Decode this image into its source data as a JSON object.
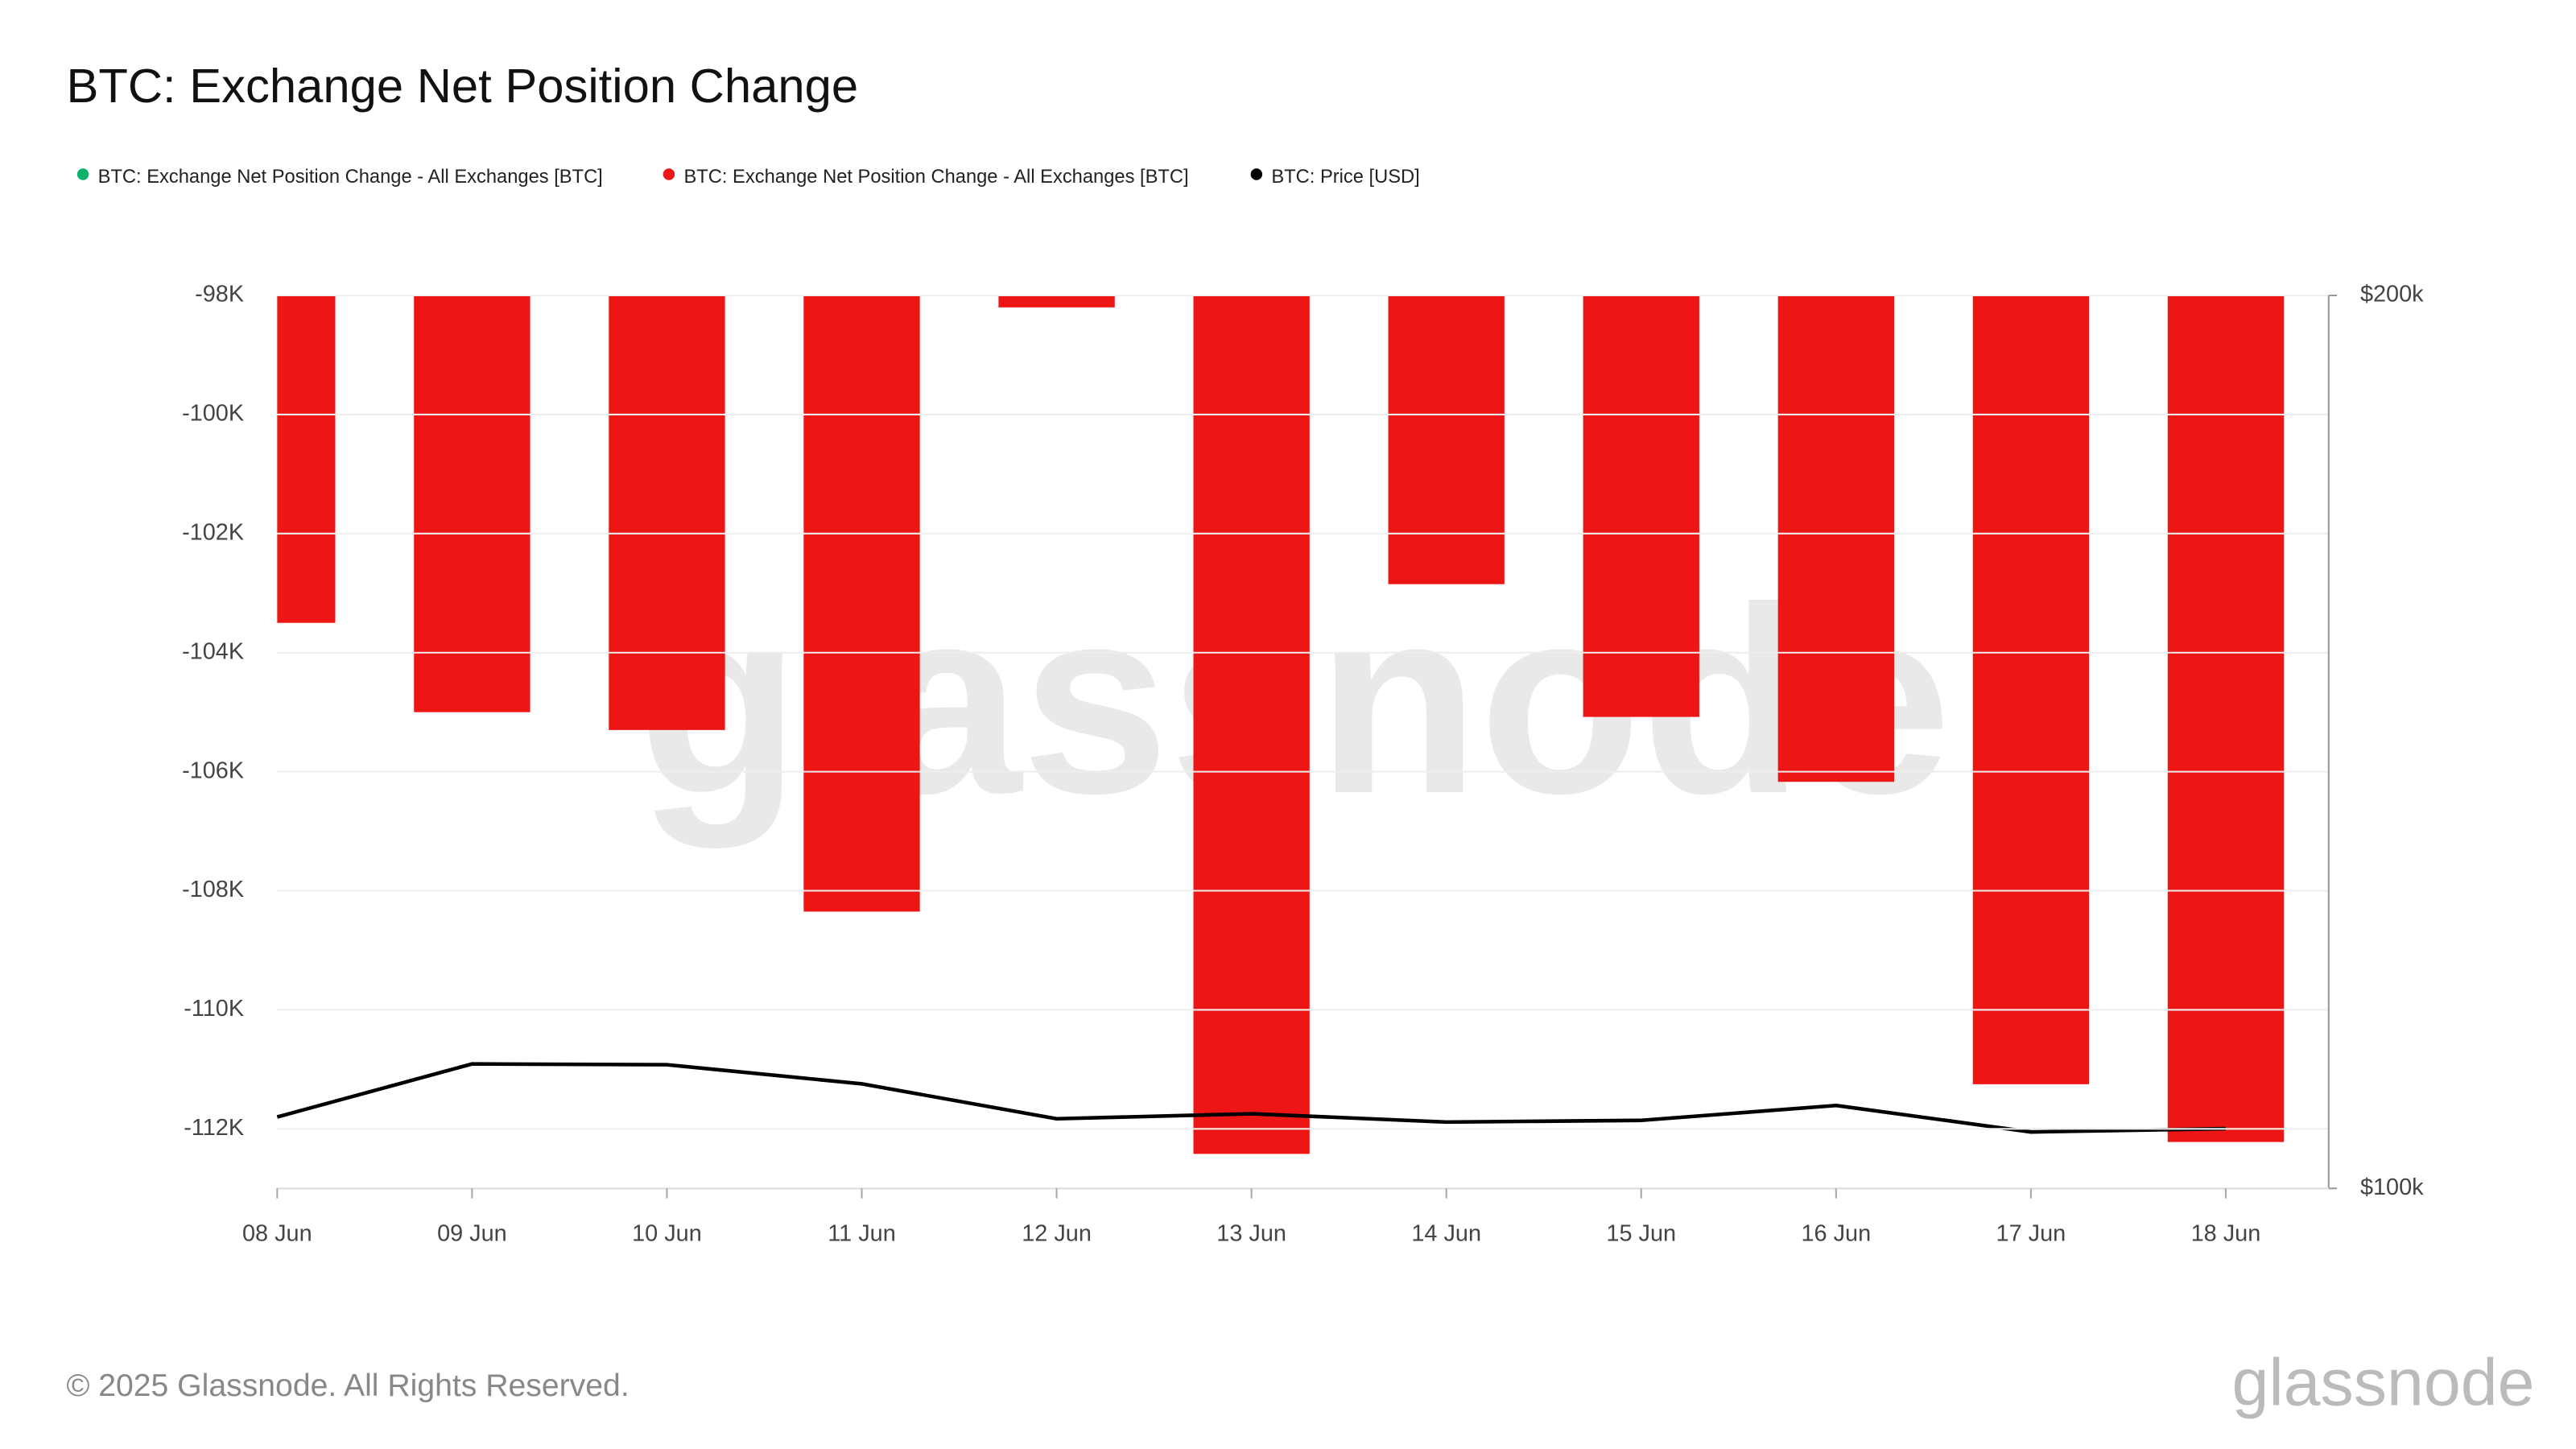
{
  "chart_data": {
    "type": "bar",
    "title": "BTC: Exchange Net Position Change",
    "categories": [
      "08 Jun",
      "09 Jun",
      "10 Jun",
      "11 Jun",
      "12 Jun",
      "13 Jun",
      "14 Jun",
      "15 Jun",
      "16 Jun",
      "17 Jun",
      "18 Jun"
    ],
    "series": [
      {
        "name": "BTC: Exchange Net Position Change - All Exchanges [BTC]",
        "color": "#0ab26b",
        "values": [
          null,
          null,
          null,
          null,
          null,
          null,
          null,
          null,
          null,
          null,
          null
        ]
      },
      {
        "name": "BTC: Exchange Net Position Change - All Exchanges [BTC]",
        "color": "#ee1515",
        "values": [
          -103500,
          -105000,
          -105300,
          -108350,
          -98200,
          -112420,
          -102850,
          -105080,
          -106170,
          -111250,
          -112220
        ]
      },
      {
        "name": "BTC: Price [USD]",
        "color": "#000000",
        "type": "line",
        "axis": "y2",
        "values": [
          108000,
          113940,
          113850,
          111710,
          107800,
          108360,
          107430,
          107620,
          109290,
          106320,
          106690
        ]
      }
    ],
    "ylim": [
      -113000,
      -98000
    ],
    "yticks": [
      {
        "value": -112000,
        "label": "-112K"
      },
      {
        "value": -110000,
        "label": "-110K"
      },
      {
        "value": -108000,
        "label": "-108K"
      },
      {
        "value": -106000,
        "label": "-106K"
      },
      {
        "value": -104000,
        "label": "-104K"
      },
      {
        "value": -102000,
        "label": "-102K"
      },
      {
        "value": -100000,
        "label": "-100K"
      },
      {
        "value": -98000,
        "label": "-98K"
      }
    ],
    "y2lim": [
      100000,
      200000
    ],
    "y2ticks": [
      {
        "value": 100000,
        "label": "$100k"
      },
      {
        "value": 200000,
        "label": "$200k"
      }
    ],
    "grid": true,
    "watermark": "glassnode",
    "footer": "© 2025 Glassnode. All Rights Reserved."
  }
}
